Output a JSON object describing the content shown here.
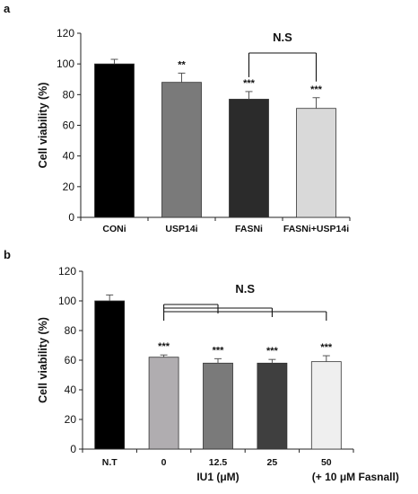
{
  "chart_data": [
    {
      "panel": "a",
      "type": "bar",
      "ylabel": "Cell viability (%)",
      "xlabel": "",
      "ylim": [
        0,
        120
      ],
      "yticks": [
        0,
        20,
        40,
        60,
        80,
        100,
        120
      ],
      "categories": [
        "CONi",
        "USP14i",
        "FASNi",
        "FASNi+USP14i"
      ],
      "values": [
        100,
        88,
        77,
        71
      ],
      "errors": [
        3,
        6,
        5,
        7
      ],
      "colors": [
        "#000000",
        "#7a7a7a",
        "#2b2b2b",
        "#d9d9d9"
      ],
      "significance": [
        "",
        "**",
        "***",
        "***"
      ],
      "comparisons": [
        {
          "from": 2,
          "to": [
            3
          ],
          "label": "N.S"
        }
      ]
    },
    {
      "panel": "b",
      "type": "bar",
      "ylabel": "Cell viability (%)",
      "xlabel": "IU1 (μM)",
      "xnote": "(+ 10 μM Fasnall)",
      "ylim": [
        0,
        120
      ],
      "yticks": [
        0,
        20,
        40,
        60,
        80,
        100,
        120
      ],
      "categories": [
        "N.T",
        "0",
        "12.5",
        "25",
        "50"
      ],
      "values": [
        100,
        62,
        58,
        58,
        59
      ],
      "errors": [
        4,
        1.5,
        3,
        2.5,
        4
      ],
      "colors": [
        "#000000",
        "#b0adb0",
        "#7a7a7a",
        "#3f3f3f",
        "#efefef"
      ],
      "significance": [
        "",
        "***",
        "***",
        "***",
        "***"
      ],
      "comparisons": [
        {
          "from": 1,
          "to": [
            2,
            3,
            4
          ],
          "label": "N.S"
        }
      ]
    }
  ]
}
